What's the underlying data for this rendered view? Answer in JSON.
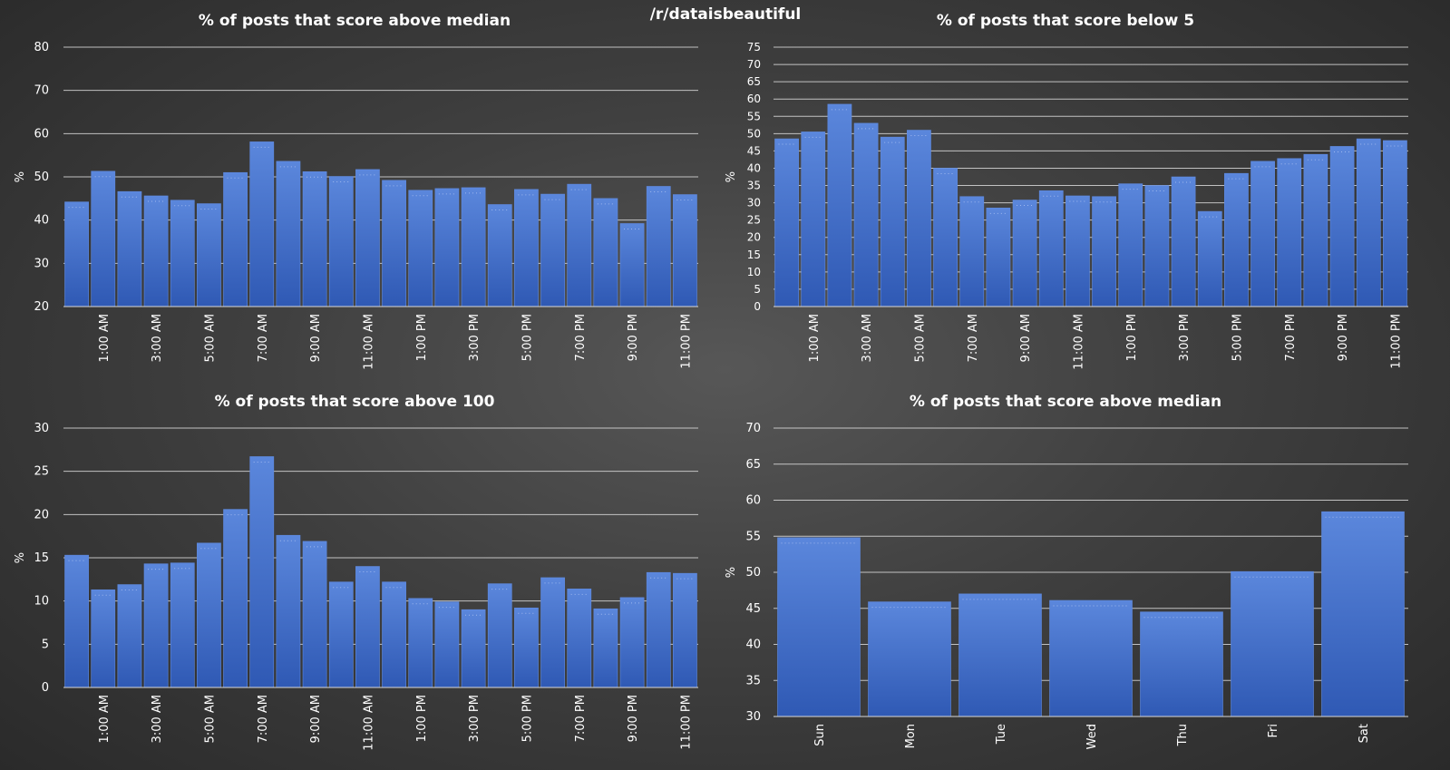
{
  "page": {
    "heading": "/r/dataisbeautiful"
  },
  "colors": {
    "bar": "#3e6bc9",
    "bar_top": "#5b87dc",
    "bar_bottom": "#2f59b4",
    "grid": "#d9d9d9",
    "text": "#ffffff"
  },
  "chart_data": [
    {
      "type": "bar",
      "title": "% of posts that score above median",
      "xlabel": "",
      "ylabel": "%",
      "ylim": [
        20,
        80
      ],
      "yticks": [
        20,
        30,
        40,
        50,
        60,
        70,
        80
      ],
      "grid": true,
      "categories": [
        "12:00 AM",
        "1:00 AM",
        "2:00 AM",
        "3:00 AM",
        "4:00 AM",
        "5:00 AM",
        "6:00 AM",
        "7:00 AM",
        "8:00 AM",
        "9:00 AM",
        "10:00 AM",
        "11:00 AM",
        "12:00 PM",
        "1:00 PM",
        "2:00 PM",
        "3:00 PM",
        "4:00 PM",
        "5:00 PM",
        "6:00 PM",
        "7:00 PM",
        "8:00 PM",
        "9:00 PM",
        "10:00 PM",
        "11:00 PM"
      ],
      "tick_labels": [
        "",
        "1:00 AM",
        "",
        "3:00 AM",
        "",
        "5:00 AM",
        "",
        "7:00 AM",
        "",
        "9:00 AM",
        "",
        "11:00 AM",
        "",
        "1:00 PM",
        "",
        "3:00 PM",
        "",
        "5:00 PM",
        "",
        "7:00 PM",
        "",
        "9:00 PM",
        "",
        "11:00 PM"
      ],
      "values": [
        44.2,
        51.3,
        46.6,
        45.6,
        44.6,
        43.8,
        51.0,
        58.1,
        53.6,
        51.2,
        50.1,
        51.7,
        49.2,
        46.9,
        47.3,
        47.5,
        43.6,
        47.1,
        46.0,
        48.3,
        45.0,
        39.2,
        47.8,
        45.9
      ]
    },
    {
      "type": "bar",
      "title": "% of posts that score below 5",
      "xlabel": "",
      "ylabel": "%",
      "ylim": [
        0,
        75
      ],
      "yticks": [
        0,
        5,
        10,
        15,
        20,
        25,
        30,
        35,
        40,
        45,
        50,
        55,
        60,
        65,
        70,
        75
      ],
      "grid": true,
      "categories": [
        "12:00 AM",
        "1:00 AM",
        "2:00 AM",
        "3:00 AM",
        "4:00 AM",
        "5:00 AM",
        "6:00 AM",
        "7:00 AM",
        "8:00 AM",
        "9:00 AM",
        "10:00 AM",
        "11:00 AM",
        "12:00 PM",
        "1:00 PM",
        "2:00 PM",
        "3:00 PM",
        "4:00 PM",
        "5:00 PM",
        "6:00 PM",
        "7:00 PM",
        "8:00 PM",
        "9:00 PM",
        "10:00 PM",
        "11:00 PM"
      ],
      "tick_labels": [
        "",
        "1:00 AM",
        "",
        "3:00 AM",
        "",
        "5:00 AM",
        "",
        "7:00 AM",
        "",
        "9:00 AM",
        "",
        "11:00 AM",
        "",
        "1:00 PM",
        "",
        "3:00 PM",
        "",
        "5:00 PM",
        "",
        "7:00 PM",
        "",
        "9:00 PM",
        "",
        "11:00 PM"
      ],
      "values": [
        48.5,
        50.5,
        58.5,
        53.0,
        49.0,
        51.0,
        40.0,
        31.8,
        28.5,
        30.8,
        33.5,
        32.0,
        31.8,
        35.5,
        35.0,
        37.5,
        27.5,
        38.5,
        42.0,
        42.8,
        44.0,
        46.3,
        48.5,
        48.0
      ]
    },
    {
      "type": "bar",
      "title": "% of posts that score above 100",
      "xlabel": "",
      "ylabel": "%",
      "ylim": [
        0,
        30
      ],
      "yticks": [
        0,
        5,
        10,
        15,
        20,
        25,
        30
      ],
      "grid": true,
      "categories": [
        "12:00 AM",
        "1:00 AM",
        "2:00 AM",
        "3:00 AM",
        "4:00 AM",
        "5:00 AM",
        "6:00 AM",
        "7:00 AM",
        "8:00 AM",
        "9:00 AM",
        "10:00 AM",
        "11:00 AM",
        "12:00 PM",
        "1:00 PM",
        "2:00 PM",
        "3:00 PM",
        "4:00 PM",
        "5:00 PM",
        "6:00 PM",
        "7:00 PM",
        "8:00 PM",
        "9:00 PM",
        "10:00 PM",
        "11:00 PM"
      ],
      "tick_labels": [
        "",
        "1:00 AM",
        "",
        "3:00 AM",
        "",
        "5:00 AM",
        "",
        "7:00 AM",
        "",
        "9:00 AM",
        "",
        "11:00 AM",
        "",
        "1:00 PM",
        "",
        "3:00 PM",
        "",
        "5:00 PM",
        "",
        "7:00 PM",
        "",
        "9:00 PM",
        "",
        "11:00 PM"
      ],
      "values": [
        15.3,
        11.3,
        11.9,
        14.3,
        14.4,
        16.7,
        20.6,
        26.7,
        17.6,
        16.9,
        12.2,
        14.0,
        12.2,
        10.3,
        9.9,
        9.0,
        12.0,
        9.2,
        12.7,
        11.4,
        9.1,
        10.4,
        13.3,
        13.2
      ]
    },
    {
      "type": "bar",
      "title": "% of posts that score above median",
      "xlabel": "",
      "ylabel": "%",
      "ylim": [
        30,
        70
      ],
      "yticks": [
        30,
        35,
        40,
        45,
        50,
        55,
        60,
        65,
        70
      ],
      "grid": true,
      "categories": [
        "Sun",
        "Mon",
        "Tue",
        "Wed",
        "Thu",
        "Fri",
        "Sat"
      ],
      "tick_labels": [
        "Sun",
        "Mon",
        "Tue",
        "Wed",
        "Thu",
        "Fri",
        "Sat"
      ],
      "values": [
        54.8,
        45.9,
        47.0,
        46.1,
        44.5,
        50.1,
        58.4
      ]
    }
  ]
}
